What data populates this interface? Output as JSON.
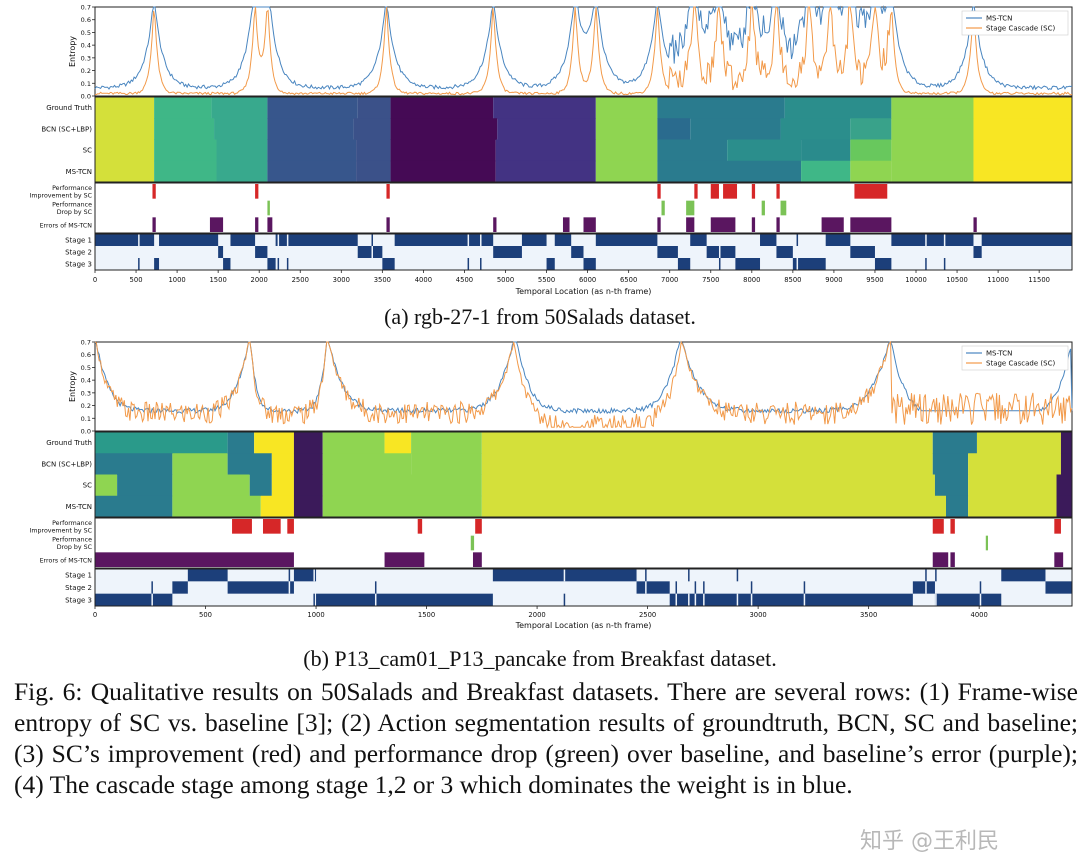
{
  "figure": {
    "sub_a_caption": "(a) rgb-27-1 from 50Salads dataset.",
    "sub_b_caption": "(b) P13_cam01_P13_pancake from Breakfast dataset.",
    "caption": "Fig. 6: Qualitative results on 50Salads and Breakfast datasets. There are several rows: (1) Frame-wise entropy of SC vs. baseline [3]; (2) Action segmentation results of groundtruth, BCN, SC and baseline; (3) SC’s improvement (red) and performance drop (green) over baseline, and baseline’s error (purple); (4) The cascade stage among stage 1,2 or 3 which dominates the weight is in blue.",
    "watermark": "知乎 @王利民"
  },
  "colors": {
    "ms_tcn": "#4a86c0",
    "sc": "#f29a4a",
    "improve": "#d62728",
    "drop": "#7bc256",
    "error": "#5a1660",
    "stage": "#1c3f7a"
  },
  "chart_data": [
    {
      "id": "a",
      "type": "line",
      "title": "(a) rgb-27-1 from 50Salads dataset.",
      "xlabel": "Temporal Location (as n-th frame)",
      "ylabel": "Entropy",
      "xlim": [
        0,
        11900
      ],
      "ylim": [
        0,
        0.7
      ],
      "xticks": [
        "0",
        "500",
        "1000",
        "1500",
        "2000",
        "2500",
        "3000",
        "3500",
        "4000",
        "4500",
        "5000",
        "5500",
        "6000",
        "6500",
        "7000",
        "7500",
        "8000",
        "8500",
        "9000",
        "9500",
        "10000",
        "10500",
        "11000",
        "11500"
      ],
      "yticks": [
        "0.0",
        "0.1",
        "0.2",
        "0.3",
        "0.4",
        "0.5",
        "0.6",
        "0.7"
      ],
      "legend": [
        "MS-TCN",
        "Stage Cascade (SC)"
      ],
      "legend_position": "top-right",
      "entropy_peaks": [
        720,
        1950,
        2100,
        3550,
        4850,
        5850,
        6100,
        6850,
        7300,
        7600,
        8000,
        8300,
        8700,
        8950,
        9200,
        9500,
        9700,
        10700
      ],
      "seg_labels": [
        "Ground Truth",
        "BCN (SC+LBP)",
        "SC",
        "MS-TCN"
      ],
      "segmentation": {
        "ground_truth": [
          [
            0,
            720,
            "#d4e03a"
          ],
          [
            720,
            1420,
            "#3fb787"
          ],
          [
            1420,
            2100,
            "#38a98d"
          ],
          [
            2100,
            3200,
            "#37568c"
          ],
          [
            3200,
            3600,
            "#3b5189"
          ],
          [
            3600,
            4850,
            "#450a55"
          ],
          [
            4850,
            6100,
            "#433383"
          ],
          [
            6100,
            6850,
            "#8fd551"
          ],
          [
            6850,
            8400,
            "#2a7b8e"
          ],
          [
            8400,
            9700,
            "#2b8e8c"
          ],
          [
            9700,
            10700,
            "#8fd551"
          ],
          [
            10700,
            11900,
            "#f8e623"
          ]
        ],
        "bcn": [
          [
            0,
            720,
            "#d4e03a"
          ],
          [
            720,
            1450,
            "#3fb787"
          ],
          [
            1450,
            2100,
            "#38a98d"
          ],
          [
            2100,
            3150,
            "#37568c"
          ],
          [
            3150,
            3600,
            "#3b5189"
          ],
          [
            3600,
            4900,
            "#450a55"
          ],
          [
            4900,
            6100,
            "#433383"
          ],
          [
            6100,
            6850,
            "#8fd551"
          ],
          [
            6850,
            7250,
            "#2a6b8e"
          ],
          [
            7250,
            8350,
            "#2a7b8e"
          ],
          [
            8350,
            9200,
            "#2b8e8c"
          ],
          [
            9200,
            9700,
            "#39a28a"
          ],
          [
            9700,
            10700,
            "#8fd551"
          ],
          [
            10700,
            11900,
            "#f8e623"
          ]
        ],
        "sc": [
          [
            0,
            720,
            "#d4e03a"
          ],
          [
            720,
            1480,
            "#3fb787"
          ],
          [
            1480,
            2100,
            "#38a98d"
          ],
          [
            2100,
            3180,
            "#37568c"
          ],
          [
            3180,
            3600,
            "#3b5189"
          ],
          [
            3600,
            4880,
            "#450a55"
          ],
          [
            4880,
            6100,
            "#433383"
          ],
          [
            6100,
            6850,
            "#8fd551"
          ],
          [
            6850,
            7700,
            "#2a7b8e"
          ],
          [
            7700,
            8600,
            "#2b8e8c"
          ],
          [
            8600,
            9200,
            "#2a8b8c"
          ],
          [
            9200,
            9700,
            "#68c85d"
          ],
          [
            9700,
            10700,
            "#8fd551"
          ],
          [
            10700,
            11900,
            "#f8e623"
          ]
        ],
        "ms_tcn": [
          [
            0,
            720,
            "#d4e03a"
          ],
          [
            720,
            1480,
            "#3fb787"
          ],
          [
            1480,
            2100,
            "#38a98d"
          ],
          [
            2100,
            3180,
            "#37568c"
          ],
          [
            3180,
            3600,
            "#3b5189"
          ],
          [
            3600,
            4880,
            "#450a55"
          ],
          [
            4880,
            6100,
            "#433383"
          ],
          [
            6100,
            6850,
            "#8fd551"
          ],
          [
            6850,
            8600,
            "#2a7b8e"
          ],
          [
            8600,
            9200,
            "#3fb787"
          ],
          [
            9200,
            9700,
            "#8fd551"
          ],
          [
            9700,
            10700,
            "#8fd551"
          ],
          [
            10700,
            11900,
            "#f8e623"
          ]
        ]
      },
      "perf_labels": [
        "Performance Improvement by SC",
        "Performance Drop by SC",
        "Errors of MS-TCN"
      ],
      "improvement": [
        [
          700,
          740
        ],
        [
          1950,
          1990
        ],
        [
          3550,
          3590
        ],
        [
          6850,
          6890
        ],
        [
          7300,
          7340
        ],
        [
          7500,
          7600
        ],
        [
          7650,
          7820
        ],
        [
          8000,
          8040
        ],
        [
          8300,
          8340
        ],
        [
          9250,
          9650
        ]
      ],
      "drop": [
        [
          2100,
          2130
        ],
        [
          6900,
          6940
        ],
        [
          7200,
          7300
        ],
        [
          8120,
          8160
        ],
        [
          8350,
          8420
        ]
      ],
      "errors": [
        [
          700,
          740
        ],
        [
          1400,
          1560
        ],
        [
          1950,
          1990
        ],
        [
          2100,
          2160
        ],
        [
          3550,
          3590
        ],
        [
          4850,
          4890
        ],
        [
          5700,
          5780
        ],
        [
          5950,
          6100
        ],
        [
          6850,
          6890
        ],
        [
          7200,
          7300
        ],
        [
          7500,
          7800
        ],
        [
          8000,
          8040
        ],
        [
          8300,
          8340
        ],
        [
          8850,
          9120
        ],
        [
          9200,
          9700
        ],
        [
          10700,
          10740
        ]
      ],
      "stage_labels": [
        "Stage 1",
        "Stage 2",
        "Stage 3"
      ],
      "stage_dominant": [
        [
          0,
          720,
          1
        ],
        [
          720,
          780,
          3
        ],
        [
          780,
          1500,
          1
        ],
        [
          1500,
          1560,
          2
        ],
        [
          1560,
          1650,
          3
        ],
        [
          1650,
          1950,
          1
        ],
        [
          1950,
          2100,
          2
        ],
        [
          2100,
          2200,
          3
        ],
        [
          2200,
          3200,
          1
        ],
        [
          3200,
          3500,
          2
        ],
        [
          3500,
          3650,
          3
        ],
        [
          3650,
          4850,
          1
        ],
        [
          4850,
          5200,
          2
        ],
        [
          5200,
          5500,
          1
        ],
        [
          5500,
          5600,
          3
        ],
        [
          5600,
          5800,
          1
        ],
        [
          5800,
          5950,
          2
        ],
        [
          5950,
          6100,
          3
        ],
        [
          6100,
          6850,
          1
        ],
        [
          6850,
          7100,
          2
        ],
        [
          7100,
          7250,
          3
        ],
        [
          7250,
          7450,
          1
        ],
        [
          7450,
          7800,
          2
        ],
        [
          7800,
          8100,
          3
        ],
        [
          8100,
          8300,
          1
        ],
        [
          8300,
          8500,
          2
        ],
        [
          8500,
          8900,
          3
        ],
        [
          8900,
          9200,
          1
        ],
        [
          9200,
          9500,
          2
        ],
        [
          9500,
          9700,
          3
        ],
        [
          9700,
          10700,
          1
        ],
        [
          10700,
          10800,
          2
        ],
        [
          10800,
          11900,
          1
        ]
      ]
    },
    {
      "id": "b",
      "type": "line",
      "title": "(b) P13_cam01_P13_pancake from Breakfast dataset.",
      "xlabel": "Temporal Location (as n-th frame)",
      "ylabel": "Entropy",
      "xlim": [
        0,
        4420
      ],
      "ylim": [
        0,
        0.7
      ],
      "xticks": [
        "0",
        "500",
        "1000",
        "1500",
        "2000",
        "2500",
        "3000",
        "3500",
        "4000"
      ],
      "yticks": [
        "0.0",
        "0.1",
        "0.2",
        "0.3",
        "0.4",
        "0.5",
        "0.6",
        "0.7"
      ],
      "legend": [
        "MS-TCN",
        "Stage Cascade (SC)"
      ],
      "legend_position": "top-right",
      "seg_labels": [
        "Ground Truth",
        "BCN (SC+LBP)",
        "SC",
        "MS-TCN"
      ],
      "segmentation": {
        "ground_truth": [
          [
            0,
            600,
            "#2a9a8a"
          ],
          [
            600,
            720,
            "#2a7b8e"
          ],
          [
            720,
            900,
            "#f8e623"
          ],
          [
            900,
            1030,
            "#3b1a5a"
          ],
          [
            1030,
            1310,
            "#8fd551"
          ],
          [
            1310,
            1430,
            "#f8e623"
          ],
          [
            1430,
            1750,
            "#8fd551"
          ],
          [
            1750,
            3790,
            "#d4e03a"
          ],
          [
            3790,
            3990,
            "#2a7b8e"
          ],
          [
            3990,
            4370,
            "#d4e03a"
          ],
          [
            4370,
            4420,
            "#3b1a5a"
          ]
        ],
        "bcn": [
          [
            0,
            350,
            "#2a7b8e"
          ],
          [
            350,
            600,
            "#8fd551"
          ],
          [
            600,
            800,
            "#2a7b8e"
          ],
          [
            800,
            900,
            "#f8e623"
          ],
          [
            900,
            1030,
            "#3b1a5a"
          ],
          [
            1030,
            1430,
            "#8fd551"
          ],
          [
            1430,
            1750,
            "#8fd551"
          ],
          [
            1750,
            3790,
            "#d4e03a"
          ],
          [
            3790,
            3950,
            "#2a7b8e"
          ],
          [
            3950,
            4370,
            "#d4e03a"
          ],
          [
            4370,
            4420,
            "#3b1a5a"
          ]
        ],
        "sc": [
          [
            0,
            100,
            "#8fd551"
          ],
          [
            100,
            350,
            "#2a7b8e"
          ],
          [
            350,
            700,
            "#8fd551"
          ],
          [
            700,
            800,
            "#2a7b8e"
          ],
          [
            800,
            900,
            "#f8e623"
          ],
          [
            900,
            1030,
            "#3b1a5a"
          ],
          [
            1030,
            1750,
            "#8fd551"
          ],
          [
            1750,
            3800,
            "#d4e03a"
          ],
          [
            3800,
            3950,
            "#2a7b8e"
          ],
          [
            3950,
            4350,
            "#d4e03a"
          ],
          [
            4350,
            4420,
            "#3b1a5a"
          ]
        ],
        "ms_tcn": [
          [
            0,
            350,
            "#2a7b8e"
          ],
          [
            350,
            750,
            "#8fd551"
          ],
          [
            750,
            900,
            "#f8e623"
          ],
          [
            900,
            1030,
            "#3b1a5a"
          ],
          [
            1030,
            1750,
            "#8fd551"
          ],
          [
            1750,
            3850,
            "#d4e03a"
          ],
          [
            3850,
            3950,
            "#2a7b8e"
          ],
          [
            3950,
            4350,
            "#d4e03a"
          ],
          [
            4350,
            4420,
            "#3b1a5a"
          ]
        ]
      },
      "perf_labels": [
        "Performance Improvement by SC",
        "Performance Drop by SC",
        "Errors of MS-TCN"
      ],
      "improvement": [
        [
          620,
          710
        ],
        [
          760,
          840
        ],
        [
          870,
          900
        ],
        [
          1460,
          1480
        ],
        [
          1720,
          1750
        ],
        [
          3790,
          3840
        ],
        [
          3870,
          3890
        ],
        [
          4340,
          4370
        ]
      ],
      "drop": [
        [
          1700,
          1715
        ],
        [
          4030,
          4040
        ]
      ],
      "errors": [
        [
          0,
          900
        ],
        [
          1310,
          1490
        ],
        [
          1710,
          1750
        ],
        [
          3790,
          3860
        ],
        [
          3870,
          3890
        ],
        [
          4340,
          4380
        ]
      ],
      "stage_labels": [
        "Stage 1",
        "Stage 2",
        "Stage 3"
      ],
      "stage_dominant": [
        [
          0,
          350,
          3
        ],
        [
          350,
          420,
          2
        ],
        [
          420,
          600,
          1
        ],
        [
          600,
          900,
          2
        ],
        [
          900,
          1000,
          1
        ],
        [
          1000,
          1800,
          3
        ],
        [
          1800,
          2450,
          1
        ],
        [
          2450,
          2600,
          2
        ],
        [
          2600,
          3700,
          3
        ],
        [
          3700,
          3800,
          2
        ],
        [
          3800,
          4100,
          3
        ],
        [
          4100,
          4300,
          1
        ],
        [
          4300,
          4420,
          2
        ]
      ]
    }
  ]
}
